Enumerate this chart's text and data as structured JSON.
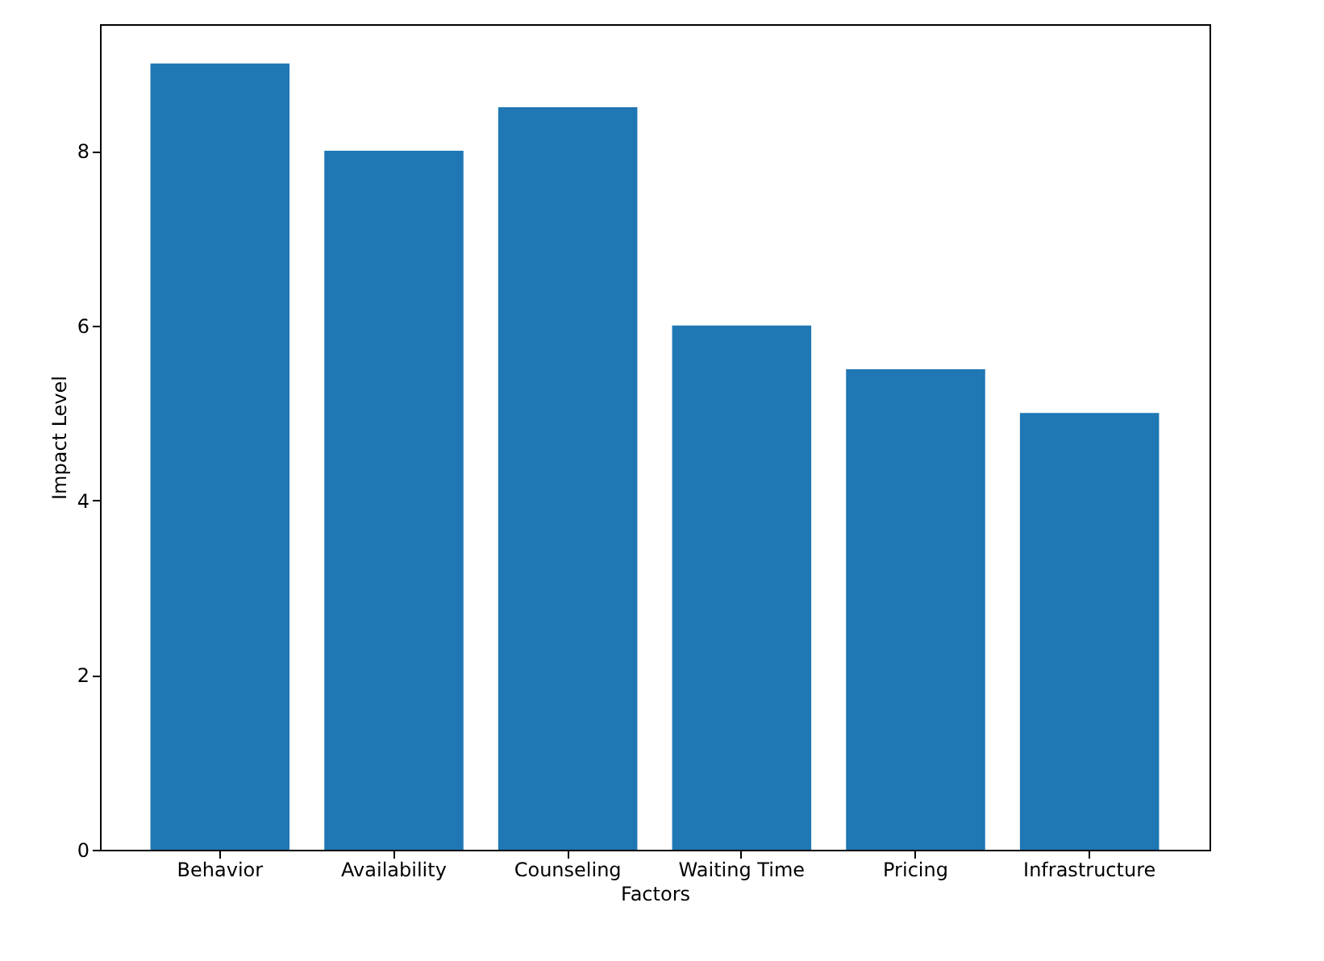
{
  "chart_data": {
    "type": "bar",
    "xlabel": "Factors",
    "ylabel": "Impact Level",
    "categories": [
      "Behavior",
      "Availability",
      "Counseling",
      "Waiting Time",
      "Pricing",
      "Infrastructure"
    ],
    "values": [
      9,
      8,
      8.5,
      6,
      5.5,
      5
    ],
    "color": "#1f77b4",
    "ylim": [
      0,
      9.45
    ],
    "yticks": [
      0,
      2,
      4,
      6,
      8
    ],
    "grid": false
  }
}
